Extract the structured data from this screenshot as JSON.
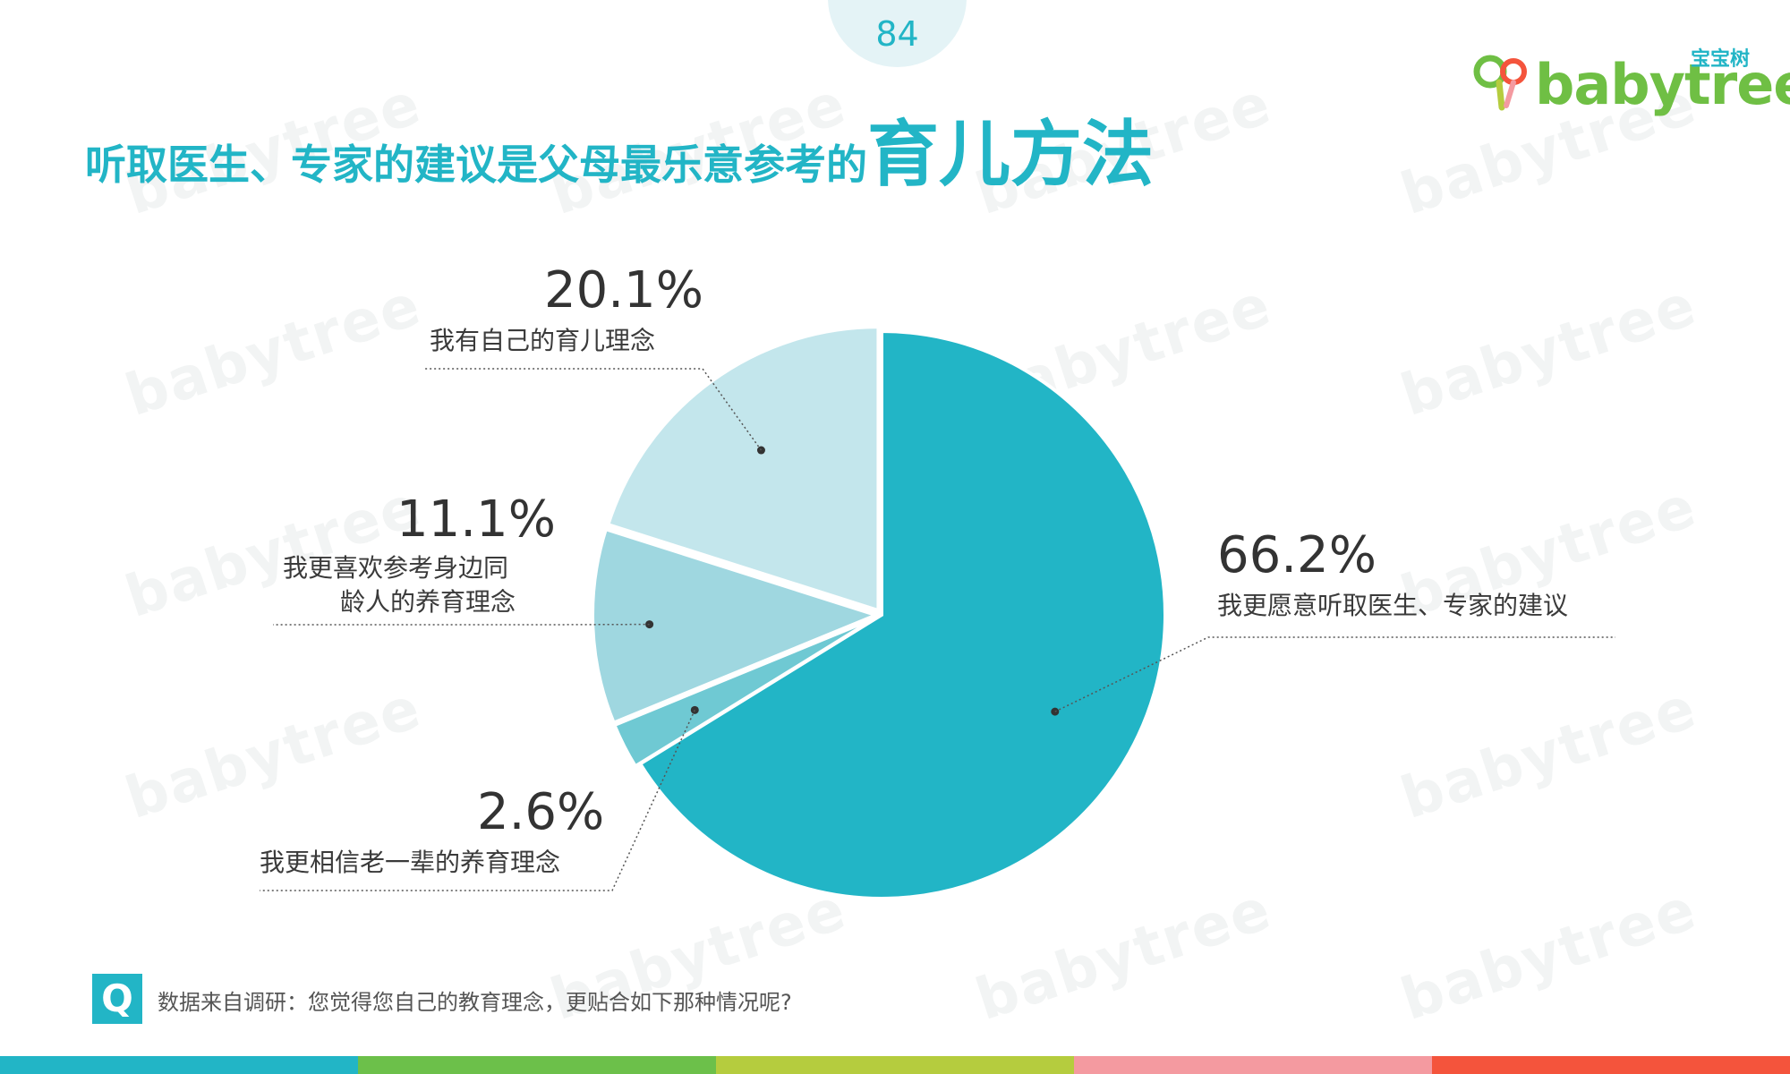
{
  "page": {
    "number": "84"
  },
  "brand": {
    "logo_cn": "宝宝树",
    "logo_en": "babytree",
    "watermark_text": "babytree"
  },
  "title": {
    "part1": "听取医生、专家的建议是父母最乐意参考的",
    "part2": "育儿方法"
  },
  "chart_data": {
    "type": "pie",
    "slices": [
      {
        "label": "我更愿意听取医生、专家的建议",
        "value": 66.2,
        "value_text": "66.2%",
        "color": "#22b5c6"
      },
      {
        "label": "我更相信老一辈的养育理念",
        "value": 2.6,
        "value_text": "2.6%",
        "color": "#6fc9d3"
      },
      {
        "label": "我更喜欢参考身边同龄人的养育理念",
        "label_lines": [
          "我更喜欢参考身边同",
          "龄人的养育理念"
        ],
        "value": 11.1,
        "value_text": "11.1%",
        "color": "#9fd7e0"
      },
      {
        "label": "我有自己的育儿理念",
        "value": 20.1,
        "value_text": "20.1%",
        "color": "#c3e6ec"
      }
    ]
  },
  "source": {
    "q_icon": "Q",
    "text": "数据来自调研：您觉得您自己的教育理念，更贴合如下那种情况呢?"
  },
  "footer_colors": [
    "#22b5c6",
    "#6cc04a",
    "#b5cc3e",
    "#f49aa0",
    "#f4543c"
  ]
}
